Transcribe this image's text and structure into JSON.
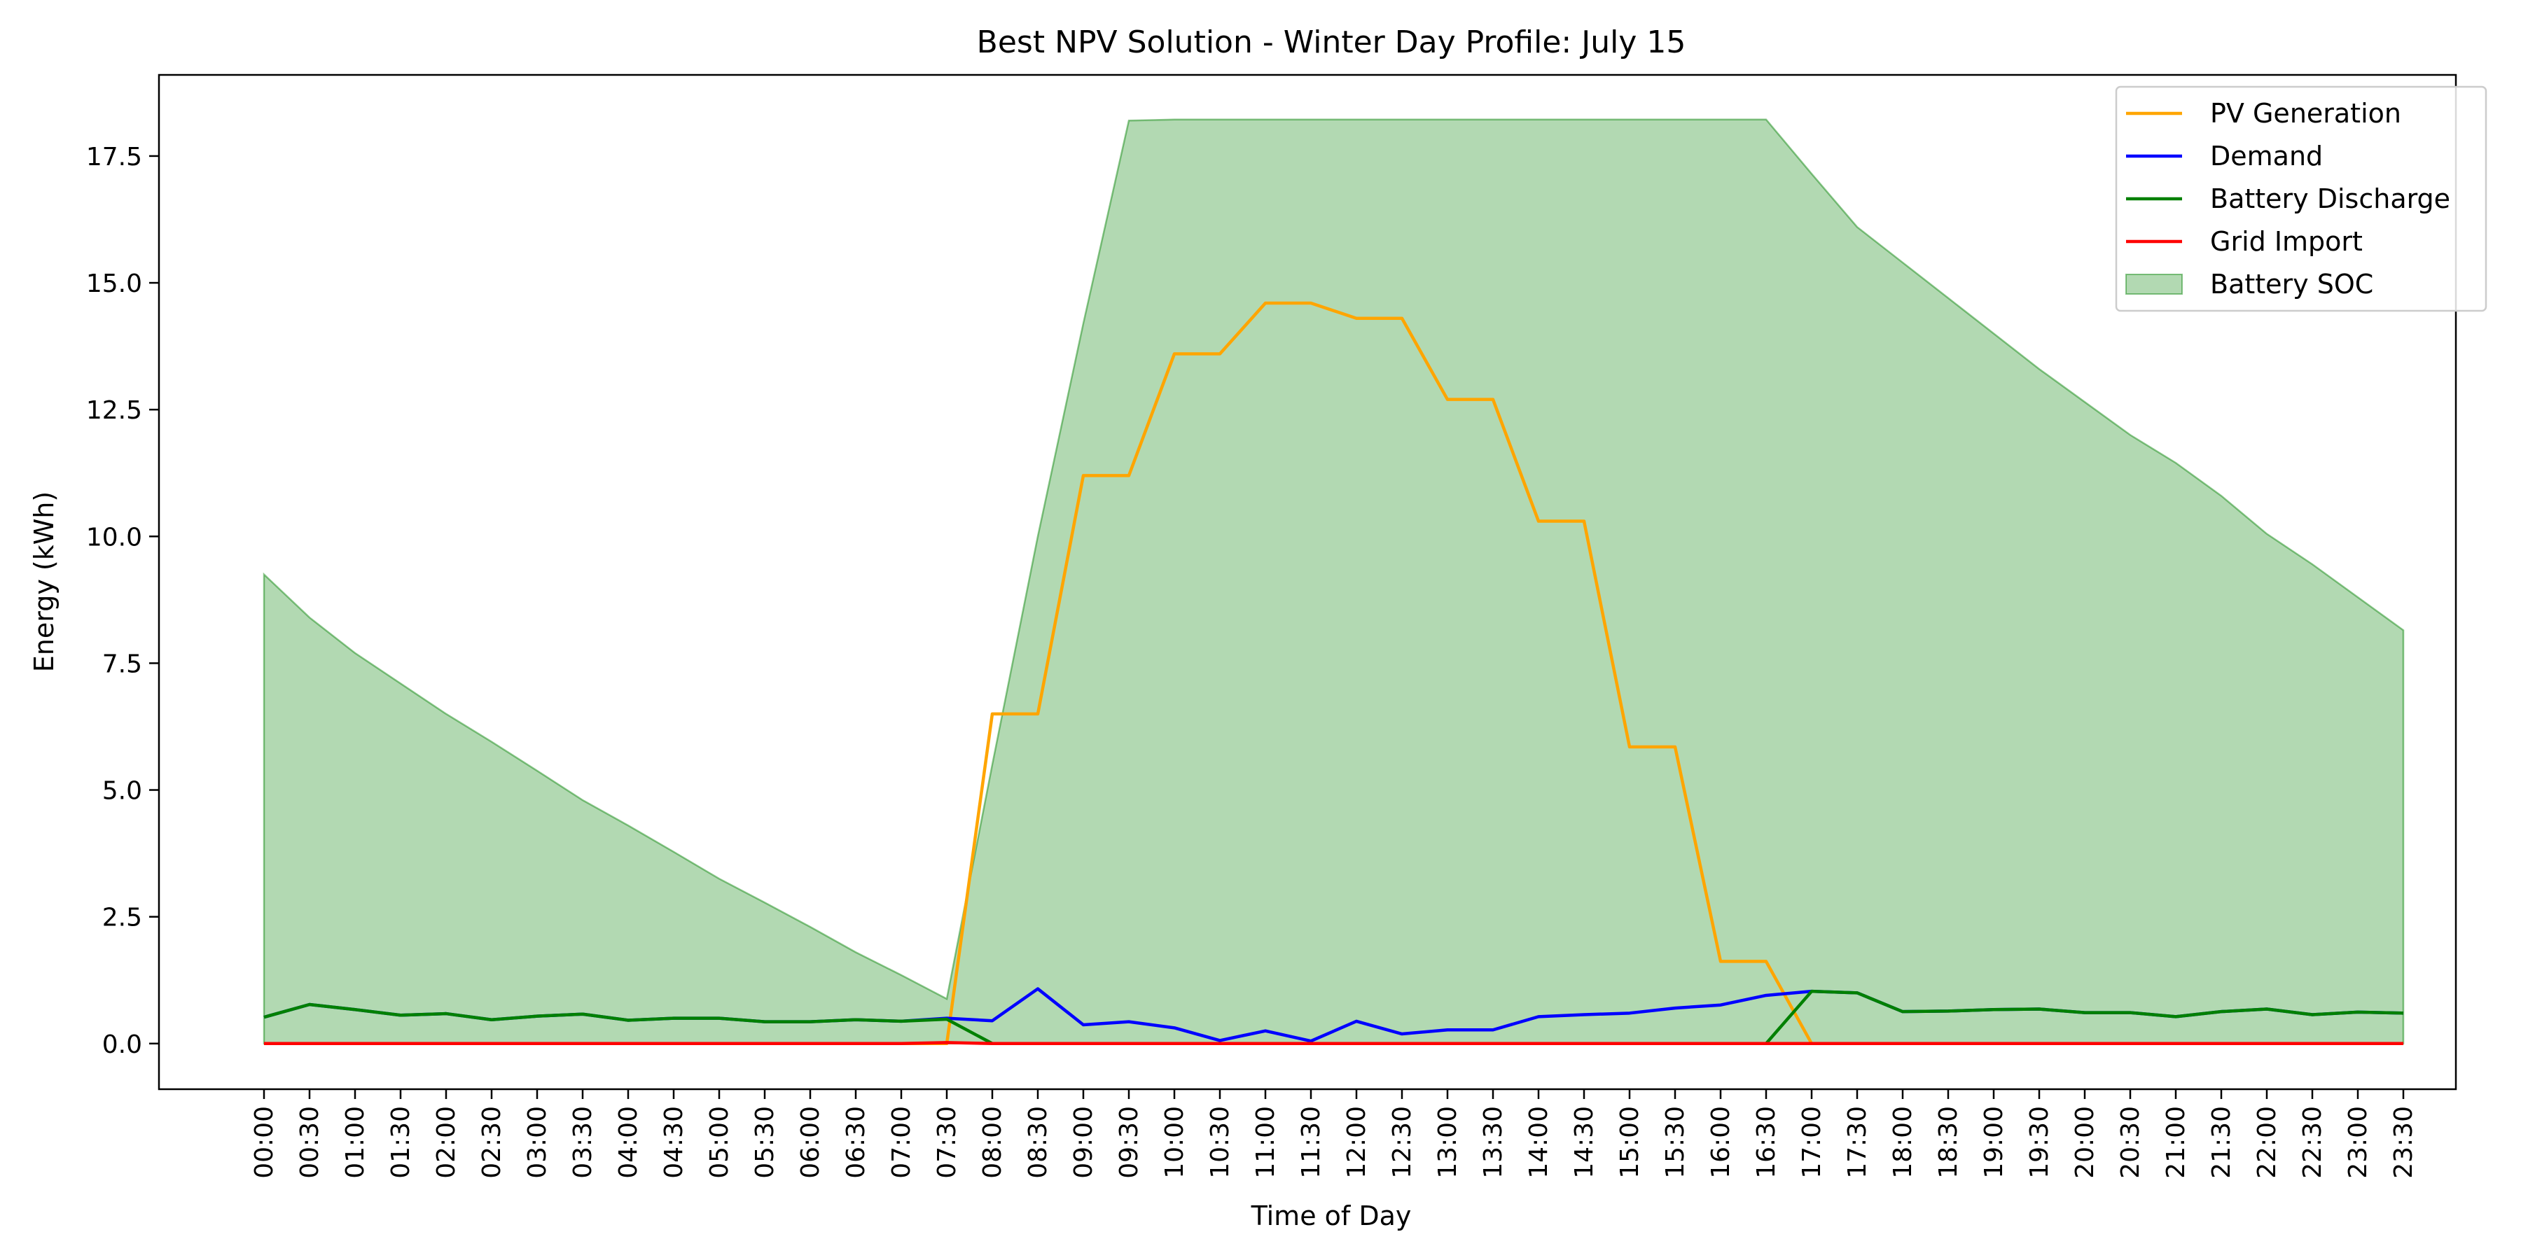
{
  "chart_data": {
    "type": "line",
    "title": "Best NPV Solution - Winter Day Profile: July 15",
    "xlabel": "Time of Day",
    "ylabel": "Energy (kWh)",
    "ylim": [
      -0.9,
      19.1
    ],
    "yticks": [
      0.0,
      2.5,
      5.0,
      7.5,
      10.0,
      12.5,
      15.0,
      17.5
    ],
    "ytick_labels": [
      "0.0",
      "2.5",
      "5.0",
      "7.5",
      "10.0",
      "12.5",
      "15.0",
      "17.5"
    ],
    "grid": false,
    "legend_position": "top-right",
    "categories": [
      "00:00",
      "00:30",
      "01:00",
      "01:30",
      "02:00",
      "02:30",
      "03:00",
      "03:30",
      "04:00",
      "04:30",
      "05:00",
      "05:30",
      "06:00",
      "06:30",
      "07:00",
      "07:30",
      "08:00",
      "08:30",
      "09:00",
      "09:30",
      "10:00",
      "10:30",
      "11:00",
      "11:30",
      "12:00",
      "12:30",
      "13:00",
      "13:30",
      "14:00",
      "14:30",
      "15:00",
      "15:30",
      "16:00",
      "16:30",
      "17:00",
      "17:30",
      "18:00",
      "18:30",
      "19:00",
      "19:30",
      "20:00",
      "20:30",
      "21:00",
      "21:30",
      "22:00",
      "22:30",
      "23:00",
      "23:30"
    ],
    "series": [
      {
        "name": "PV Generation",
        "kind": "line",
        "color": "#ffa500",
        "values": [
          0,
          0,
          0,
          0,
          0,
          0,
          0,
          0,
          0,
          0,
          0,
          0,
          0,
          0,
          0,
          0,
          6.5,
          6.5,
          11.2,
          11.2,
          13.6,
          13.6,
          14.6,
          14.6,
          14.3,
          14.3,
          12.7,
          12.7,
          10.3,
          10.3,
          5.85,
          5.85,
          1.62,
          1.62,
          0,
          0,
          0,
          0,
          0,
          0,
          0,
          0,
          0,
          0,
          0,
          0,
          0,
          0
        ]
      },
      {
        "name": "Demand",
        "kind": "line",
        "color": "#0000ff",
        "values": [
          0.52,
          0.77,
          0.67,
          0.56,
          0.59,
          0.47,
          0.54,
          0.58,
          0.46,
          0.5,
          0.5,
          0.43,
          0.43,
          0.47,
          0.44,
          0.5,
          0.45,
          1.08,
          0.37,
          0.43,
          0.31,
          0.06,
          0.25,
          0.05,
          0.44,
          0.19,
          0.27,
          0.27,
          0.53,
          0.57,
          0.6,
          0.7,
          0.76,
          0.95,
          1.03,
          1.0,
          0.63,
          0.64,
          0.67,
          0.68,
          0.61,
          0.61,
          0.53,
          0.63,
          0.68,
          0.57,
          0.62,
          0.6
        ]
      },
      {
        "name": "Battery Discharge",
        "kind": "line",
        "color": "#008000",
        "values": [
          0.52,
          0.77,
          0.67,
          0.56,
          0.59,
          0.47,
          0.54,
          0.58,
          0.46,
          0.5,
          0.5,
          0.43,
          0.43,
          0.47,
          0.44,
          0.48,
          0,
          0,
          0,
          0,
          0,
          0,
          0,
          0,
          0,
          0,
          0,
          0,
          0,
          0,
          0,
          0,
          0,
          0,
          1.03,
          1.0,
          0.63,
          0.64,
          0.67,
          0.68,
          0.61,
          0.61,
          0.53,
          0.63,
          0.68,
          0.57,
          0.62,
          0.6
        ]
      },
      {
        "name": "Grid Import",
        "kind": "line",
        "color": "#ff0000",
        "values": [
          0,
          0,
          0,
          0,
          0,
          0,
          0,
          0,
          0,
          0,
          0,
          0,
          0,
          0,
          0,
          0.02,
          0,
          0,
          0,
          0,
          0,
          0,
          0,
          0,
          0,
          0,
          0,
          0,
          0,
          0,
          0,
          0,
          0,
          0,
          0,
          0,
          0,
          0,
          0,
          0,
          0,
          0,
          0,
          0,
          0,
          0,
          0,
          0
        ]
      },
      {
        "name": "Battery SOC",
        "kind": "area",
        "color": "#008000",
        "opacity": 0.3,
        "values": [
          9.25,
          8.4,
          7.7,
          7.1,
          6.5,
          5.95,
          5.38,
          4.8,
          4.3,
          3.78,
          3.25,
          2.78,
          2.3,
          1.8,
          1.35,
          0.88,
          5.5,
          10.0,
          14.2,
          18.2,
          18.22,
          18.22,
          18.22,
          18.22,
          18.22,
          18.22,
          18.22,
          18.22,
          18.22,
          18.22,
          18.22,
          18.22,
          18.22,
          18.22,
          17.15,
          16.1,
          15.4,
          14.7,
          14.0,
          13.3,
          12.65,
          12.0,
          11.45,
          10.8,
          10.05,
          9.45,
          8.8,
          8.15
        ]
      }
    ]
  }
}
